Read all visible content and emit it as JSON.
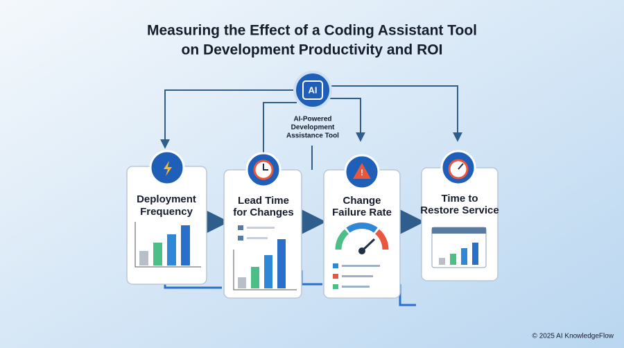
{
  "header": {
    "title": [
      "Measuring the Effect of a Coding Assistant Tool",
      "on Development Productivity and ROI"
    ]
  },
  "hub": {
    "icon": "AI",
    "label": [
      "AI-Powered",
      "Development",
      "Assistance Tool"
    ]
  },
  "cards": [
    {
      "title": [
        "Deployment",
        "Frequency"
      ]
    },
    {
      "title": [
        "Lead Time",
        "for Changes"
      ]
    },
    {
      "title": [
        "Change",
        "Failure Rate"
      ]
    },
    {
      "title": [
        "Time to",
        "Restore Service"
      ]
    }
  ],
  "footer": "© 2025 AI KnowledgeFlow"
}
